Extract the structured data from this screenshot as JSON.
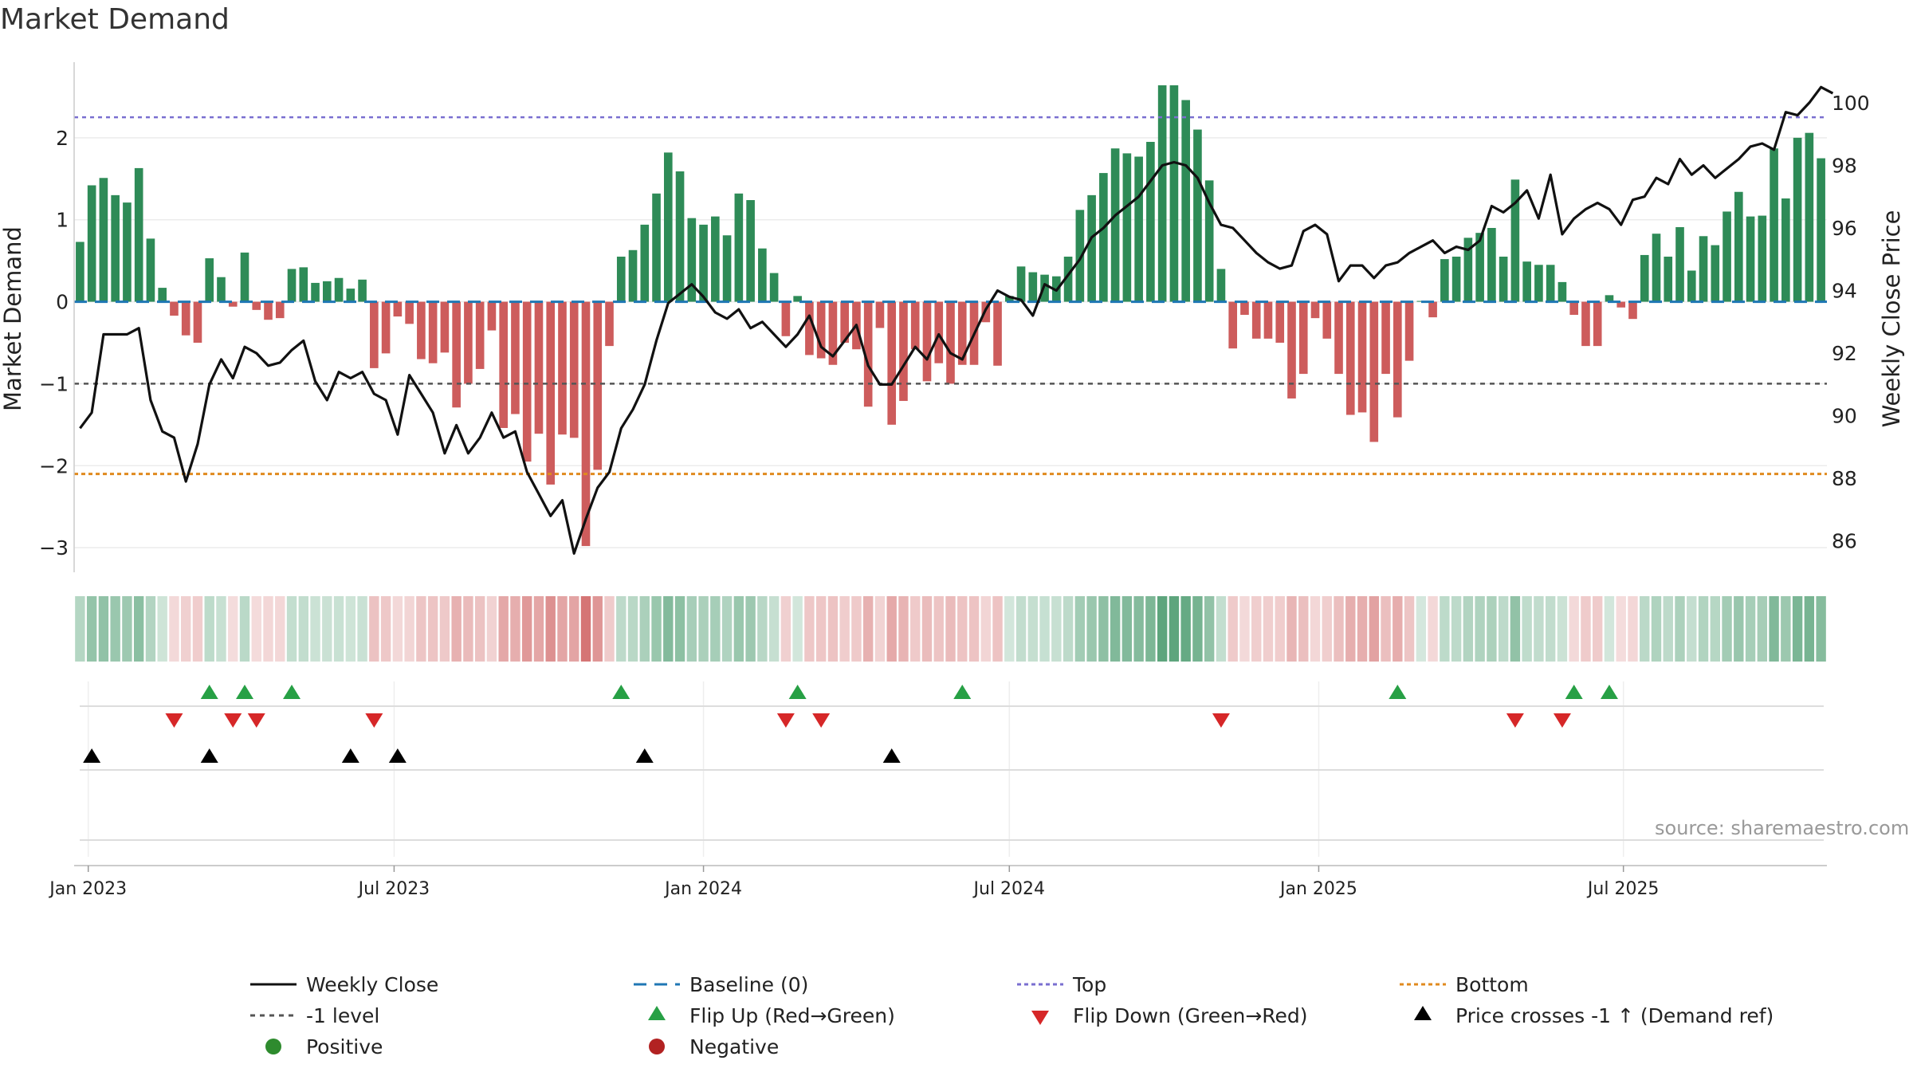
{
  "title": "Market Demand",
  "source": "source: sharemaestro.com",
  "colors": {
    "positive": "#2e8b57",
    "negative": "#cd5c5c",
    "price": "#111111",
    "baseline": "#1f77b4",
    "top": "#7a6fd0",
    "bottom": "#e08a1e",
    "minus1": "#555555",
    "flip_up": "#27a045",
    "flip_down": "#d62728",
    "cross": "#000000",
    "legend_positive": "#2e8b2e",
    "legend_negative": "#b22222"
  },
  "chart_data": {
    "type": "bar",
    "ylabel": "Market Demand",
    "y2label": "Weekly Close Price",
    "ylim": [
      -3.3,
      3.0
    ],
    "y2lim": [
      85.0,
      101.5
    ],
    "yticks": [
      {
        "v": 2,
        "label": "2"
      },
      {
        "v": 1,
        "label": "1"
      },
      {
        "v": 0,
        "label": "0"
      },
      {
        "v": -1,
        "label": "−1"
      },
      {
        "v": -2,
        "label": "−2"
      },
      {
        "v": -3,
        "label": "−3"
      }
    ],
    "y2ticks": [
      {
        "v": 86,
        "label": "86"
      },
      {
        "v": 88,
        "label": "88"
      },
      {
        "v": 90,
        "label": "90"
      },
      {
        "v": 92,
        "label": "92"
      },
      {
        "v": 94,
        "label": "94"
      },
      {
        "v": 96,
        "label": "96"
      },
      {
        "v": 98,
        "label": "98"
      },
      {
        "v": 100,
        "label": "100"
      }
    ],
    "xticks": [
      {
        "i": 0.7,
        "label": "Jan 2023"
      },
      {
        "i": 26.7,
        "label": "Jul 2023"
      },
      {
        "i": 53.0,
        "label": "Jan 2024"
      },
      {
        "i": 79.0,
        "label": "Jul 2024"
      },
      {
        "i": 105.3,
        "label": "Jan 2025"
      },
      {
        "i": 131.2,
        "label": "Jul 2025"
      }
    ],
    "reference_lines": {
      "baseline": 0,
      "top": 2.25,
      "minus1": -1,
      "bottom": -2.1
    },
    "demand": [
      0.73,
      1.42,
      1.51,
      1.3,
      1.21,
      1.63,
      0.77,
      0.17,
      -0.17,
      -0.41,
      -0.5,
      0.53,
      0.3,
      -0.06,
      0.6,
      -0.1,
      -0.22,
      -0.2,
      0.4,
      0.42,
      0.23,
      0.25,
      0.29,
      0.16,
      0.27,
      -0.81,
      -0.63,
      -0.18,
      -0.27,
      -0.7,
      -0.75,
      -0.62,
      -1.29,
      -1.0,
      -0.82,
      -0.35,
      -1.54,
      -1.37,
      -1.95,
      -1.61,
      -2.23,
      -1.62,
      -1.66,
      -2.98,
      -2.05,
      -0.54,
      0.55,
      0.63,
      0.94,
      1.32,
      1.82,
      1.59,
      1.02,
      0.94,
      1.04,
      0.81,
      1.32,
      1.24,
      0.65,
      0.35,
      -0.42,
      0.07,
      -0.65,
      -0.69,
      -0.77,
      -0.5,
      -0.58,
      -1.28,
      -0.32,
      -1.5,
      -1.21,
      -0.58,
      -0.97,
      -0.75,
      -1.0,
      -0.77,
      -0.77,
      -0.25,
      -0.78,
      0.07,
      0.43,
      0.36,
      0.33,
      0.31,
      0.55,
      1.12,
      1.3,
      1.57,
      1.87,
      1.81,
      1.77,
      1.95,
      2.64,
      2.64,
      2.46,
      2.1,
      1.48,
      0.4,
      -0.57,
      -0.16,
      -0.45,
      -0.45,
      -0.5,
      -1.18,
      -0.88,
      -0.2,
      -0.45,
      -0.88,
      -1.38,
      -1.35,
      -1.71,
      -0.88,
      -1.41,
      -0.72,
      0.01,
      -0.19,
      0.52,
      0.55,
      0.78,
      0.84,
      0.9,
      0.55,
      1.49,
      0.49,
      0.45,
      0.45,
      0.24,
      -0.16,
      -0.54,
      -0.54,
      0.08,
      -0.07,
      -0.21,
      0.57,
      0.83,
      0.55,
      0.91,
      0.38,
      0.8,
      0.69,
      1.1,
      1.34,
      1.04,
      1.05,
      1.87,
      1.26,
      2.0,
      2.06,
      1.75
    ],
    "price": [
      89.6,
      90.1,
      92.6,
      92.6,
      92.6,
      92.8,
      90.5,
      89.5,
      89.3,
      87.9,
      89.1,
      91.0,
      91.8,
      91.2,
      92.2,
      92.0,
      91.6,
      91.7,
      92.1,
      92.4,
      91.1,
      90.5,
      91.4,
      91.2,
      91.4,
      90.7,
      90.5,
      89.4,
      91.3,
      90.7,
      90.1,
      88.8,
      89.7,
      88.8,
      89.3,
      90.1,
      89.3,
      89.5,
      88.2,
      87.5,
      86.8,
      87.3,
      85.6,
      86.7,
      87.7,
      88.2,
      89.6,
      90.2,
      91.0,
      92.4,
      93.6,
      93.9,
      94.2,
      93.8,
      93.3,
      93.1,
      93.4,
      92.8,
      93.0,
      92.6,
      92.2,
      92.6,
      93.2,
      92.2,
      91.9,
      92.4,
      92.9,
      91.6,
      91.0,
      91.0,
      91.6,
      92.2,
      91.8,
      92.6,
      92.0,
      91.8,
      92.6,
      93.4,
      94.0,
      93.8,
      93.7,
      93.2,
      94.2,
      94.0,
      94.5,
      95.0,
      95.7,
      96.0,
      96.4,
      96.7,
      97.0,
      97.5,
      98.0,
      98.1,
      98.0,
      97.6,
      96.8,
      96.1,
      96.0,
      95.6,
      95.2,
      94.9,
      94.7,
      94.8,
      95.9,
      96.1,
      95.8,
      94.3,
      94.8,
      94.8,
      94.4,
      94.8,
      94.9,
      95.2,
      95.4,
      95.6,
      95.2,
      95.4,
      95.3,
      95.6,
      96.7,
      96.5,
      96.8,
      97.2,
      96.3,
      97.7,
      95.8,
      96.3,
      96.6,
      96.8,
      96.6,
      96.1,
      96.9,
      97.0,
      97.6,
      97.4,
      98.2,
      97.7,
      98.0,
      97.6,
      97.9,
      98.2,
      98.6,
      98.7,
      98.5,
      99.7,
      99.6,
      100.0,
      100.5,
      100.3
    ],
    "flip_up": [
      11,
      14,
      18,
      46,
      61,
      75,
      112,
      127,
      130
    ],
    "flip_down": [
      8,
      13,
      15,
      25,
      60,
      63,
      97,
      122,
      126
    ],
    "cross_up": [
      1,
      11,
      23,
      27,
      48,
      69
    ],
    "legend": [
      {
        "label": "Weekly Close",
        "marker": "line"
      },
      {
        "label": "Baseline (0)",
        "marker": "baseline"
      },
      {
        "label": "Top",
        "marker": "top"
      },
      {
        "label": "Bottom",
        "marker": "bottom"
      },
      {
        "label": "-1 level",
        "marker": "minus1"
      },
      {
        "label": "Flip Up (Red→Green)",
        "marker": "flip_up"
      },
      {
        "label": "Flip Down (Green→Red)",
        "marker": "flip_down"
      },
      {
        "label": "Price crosses -1 ↑ (Demand ref)",
        "marker": "cross"
      },
      {
        "label": "Positive",
        "marker": "positive"
      },
      {
        "label": "Negative",
        "marker": "negative"
      }
    ]
  }
}
